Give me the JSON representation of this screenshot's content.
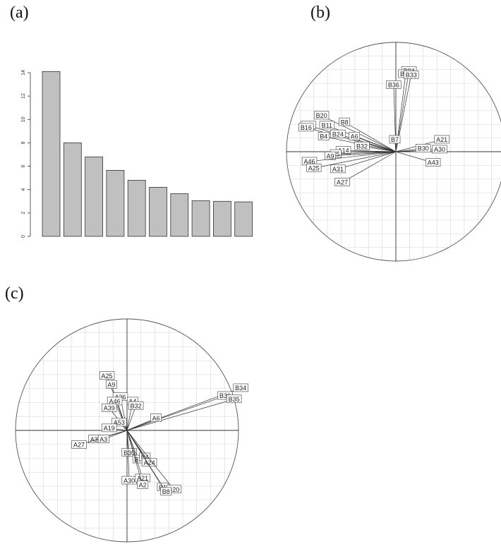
{
  "panels": {
    "a": "(a)",
    "b": "(b)",
    "c": "(c)"
  },
  "chart_data": [
    {
      "id": "a",
      "type": "bar",
      "values": [
        14.1,
        8.0,
        6.8,
        5.65,
        4.8,
        4.2,
        3.65,
        3.05,
        3.0,
        2.95
      ],
      "ylim": [
        0,
        14
      ],
      "yticks": [
        "0",
        "2",
        "4",
        "6",
        "8",
        "10",
        "12",
        "14"
      ],
      "title": "",
      "xlabel": "",
      "ylabel": "",
      "colors": {
        "bar_fill": "#c0c0c0",
        "bar_stroke": "#333333"
      }
    },
    {
      "id": "b",
      "type": "scatter",
      "title": "",
      "xlabel": "",
      "ylabel": "",
      "grid": true,
      "xlim": [
        -1,
        1
      ],
      "ylim": [
        -1,
        1
      ],
      "labels": [
        "B34",
        "B35",
        "B33",
        "B36",
        "B20",
        "B8",
        "B14",
        "B16",
        "B11",
        "B24",
        "B4",
        "A6",
        "B7",
        "A21",
        "A30",
        "B30",
        "B32",
        "A14",
        "A5",
        "A9",
        "A46",
        "A25",
        "A31",
        "A43",
        "A27"
      ],
      "x": [
        0.12,
        0.09,
        0.14,
        -0.02,
        -0.68,
        -0.47,
        -0.8,
        -0.82,
        -0.63,
        -0.53,
        -0.66,
        -0.38,
        -0.01,
        0.42,
        0.4,
        0.25,
        -0.31,
        -0.48,
        -0.55,
        -0.6,
        -0.79,
        -0.75,
        -0.53,
        0.34,
        -0.49
      ],
      "y": [
        0.74,
        0.71,
        0.7,
        0.61,
        0.33,
        0.27,
        0.24,
        0.22,
        0.24,
        0.16,
        0.14,
        0.14,
        0.11,
        0.11,
        0.02,
        0.03,
        0.05,
        0.01,
        -0.02,
        -0.04,
        -0.09,
        -0.15,
        -0.16,
        -0.1,
        -0.28
      ]
    },
    {
      "id": "c",
      "type": "scatter",
      "title": "",
      "xlabel": "",
      "ylabel": "",
      "grid": true,
      "xlim": [
        -1,
        1
      ],
      "ylim": [
        -1,
        1
      ],
      "labels": [
        "B34",
        "B36",
        "B35",
        "A25",
        "A9",
        "A36",
        "A46",
        "A39",
        "A4",
        "B32",
        "A6",
        "A53",
        "A19",
        "A31",
        "A27",
        "A3",
        "B30",
        "B7",
        "B4",
        "A24",
        "A30",
        "A21",
        "A2",
        "B1",
        "B20",
        "B8"
      ],
      "x": [
        1.02,
        0.88,
        0.96,
        -0.18,
        -0.14,
        -0.06,
        -0.11,
        -0.16,
        0.05,
        0.08,
        0.26,
        -0.07,
        -0.16,
        -0.28,
        -0.43,
        -0.21,
        0.02,
        0.1,
        0.16,
        0.2,
        0.02,
        0.14,
        0.14,
        0.32,
        0.42,
        0.35
      ],
      "y": [
        0.38,
        0.31,
        0.28,
        0.49,
        0.41,
        0.3,
        0.26,
        0.2,
        0.26,
        0.22,
        0.11,
        0.07,
        0.02,
        -0.08,
        -0.13,
        -0.08,
        -0.2,
        -0.26,
        -0.24,
        -0.29,
        -0.45,
        -0.43,
        -0.49,
        -0.51,
        -0.53,
        -0.55
      ]
    }
  ]
}
